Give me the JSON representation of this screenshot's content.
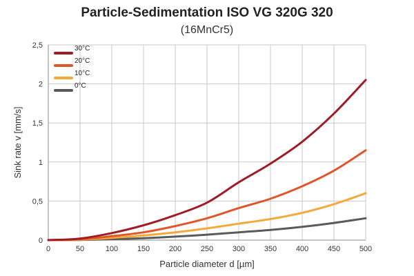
{
  "chart_data": {
    "type": "line",
    "title": "Particle-Sedimentation ISO VG 320G 320",
    "subtitle": "(16MnCr5)",
    "xlabel": "Particle diameter  d [µm]",
    "ylabel": "Sink rate  v  [mm/s]",
    "xlim": [
      0,
      500
    ],
    "ylim": [
      0,
      2.5
    ],
    "x_ticks": [
      "0",
      "50",
      "100",
      "150",
      "200",
      "250",
      "300",
      "350",
      "400",
      "450",
      "500"
    ],
    "y_ticks": [
      "0",
      "0,5",
      "1",
      "1,5",
      "2",
      "2,5"
    ],
    "grid": true,
    "legend_position": "top-left",
    "x": [
      0,
      50,
      100,
      150,
      200,
      250,
      300,
      350,
      400,
      450,
      500
    ],
    "series": [
      {
        "name": "30°C",
        "color": "#a01c25",
        "values": [
          0,
          0.02,
          0.09,
          0.19,
          0.32,
          0.48,
          0.74,
          0.98,
          1.26,
          1.62,
          2.05
        ]
      },
      {
        "name": "20°C",
        "color": "#e0562a",
        "values": [
          0,
          0.01,
          0.05,
          0.1,
          0.18,
          0.28,
          0.41,
          0.53,
          0.69,
          0.89,
          1.15
        ]
      },
      {
        "name": "10°C",
        "color": "#f5a93a",
        "values": [
          0,
          0.005,
          0.03,
          0.06,
          0.1,
          0.15,
          0.21,
          0.27,
          0.35,
          0.46,
          0.6
        ]
      },
      {
        "name": "0°C",
        "color": "#5a5a5a",
        "values": [
          0,
          0.003,
          0.012,
          0.025,
          0.045,
          0.07,
          0.1,
          0.13,
          0.17,
          0.22,
          0.28
        ]
      }
    ]
  }
}
